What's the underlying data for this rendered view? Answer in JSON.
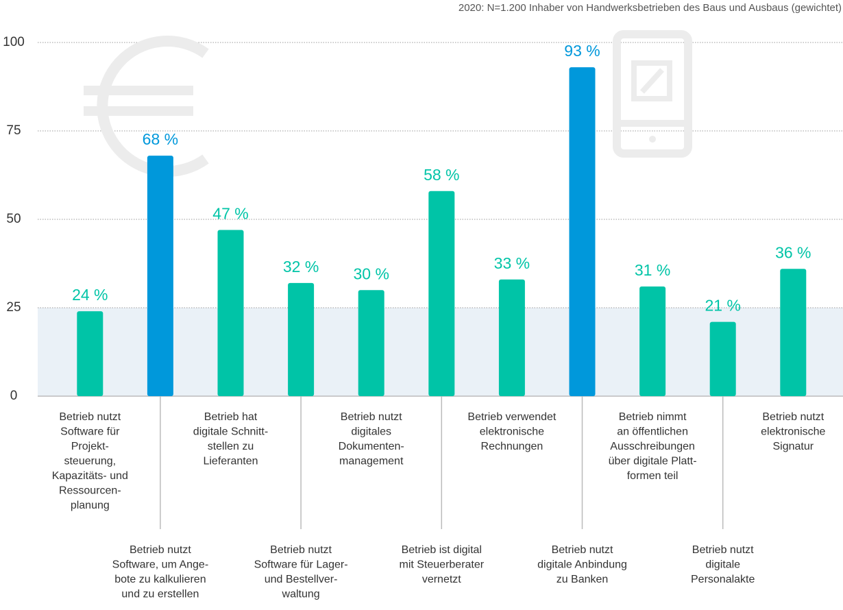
{
  "chart_data": {
    "type": "bar",
    "subtitle": "2020: N=1.200 Inhaber von Handwerksbetrieben des Baus und Ausbaus (gewichtet)",
    "categories": [
      "Betrieb nutzt\nSoftware für\nProjekt-\nsteuerung,\nKapazitäts- und\nRessourcen-\nplanung",
      "Betrieb nutzt\nSoftware, um Ange-\nbote zu kalkulieren\nund zu erstellen",
      "Betrieb hat\ndigitale Schnitt-\nstellen zu\nLieferanten",
      "Betrieb nutzt\nSoftware für Lager-\nund Bestellver-\nwaltung",
      "Betrieb nutzt\ndigitales\nDokumenten-\nmanagement",
      "Betrieb ist digital\nmit Steuerberater\nvernetzt",
      "Betrieb verwendet\nelektronische\nRechnungen",
      "Betrieb nutzt\ndigitale Anbindung\nzu Banken",
      "Betrieb nimmt\nan öffentlichen\nAusschreibungen\nüber digitale Platt-\nformen teil",
      "Betrieb nutzt\ndigitale\nPersonalakte",
      "Betrieb nutzt\nelektronische\nSignatur"
    ],
    "values": [
      24,
      68,
      47,
      32,
      30,
      58,
      33,
      93,
      31,
      21,
      36
    ],
    "value_labels": [
      "24 %",
      "68 %",
      "47 %",
      "32 %",
      "30 %",
      "58 %",
      "33 %",
      "93 %",
      "31 %",
      "21 %",
      "36 %"
    ],
    "colors": [
      "#00c4a7",
      "#0098db",
      "#00c4a7",
      "#00c4a7",
      "#00c4a7",
      "#00c4a7",
      "#00c4a7",
      "#0098db",
      "#00c4a7",
      "#00c4a7",
      "#00c4a7"
    ],
    "band": {
      "from": 0,
      "to": 25,
      "color": "#eaf1f7"
    },
    "ylim": [
      0,
      100
    ],
    "yticks": [
      0,
      25,
      50,
      75,
      100
    ],
    "grid": true
  }
}
